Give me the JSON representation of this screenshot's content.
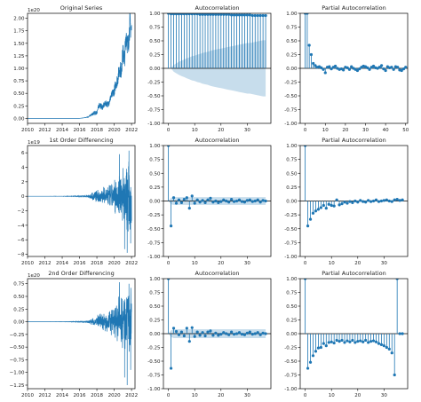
{
  "colors": {
    "line": "#1f77b4",
    "marker": "#1f77b4",
    "band": "#1f77b4",
    "axis": "#000000",
    "zero": "#000000"
  },
  "chart_data": [
    {
      "id": "orig_series",
      "type": "line",
      "title": "Original Series",
      "xlabel": "",
      "ylabel": "",
      "offset_label": "1e20",
      "xlim": [
        2010,
        2022.4
      ],
      "ylim": [
        -0.1,
        2.1
      ],
      "xticks": [
        2010,
        2012,
        2014,
        2016,
        2018,
        2020,
        2022
      ],
      "xtick_labels": [
        "2010",
        "2012",
        "2014",
        "2016",
        "2018",
        "2020",
        "2022"
      ],
      "yticks": [
        0.0,
        0.25,
        0.5,
        0.75,
        1.0,
        1.25,
        1.5,
        1.75,
        2.0
      ],
      "ytick_labels": [
        "0.00",
        "0.25",
        "0.50",
        "0.75",
        "1.00",
        "1.25",
        "1.50",
        "1.75",
        "2.00"
      ],
      "x": [
        2010,
        2016,
        2016.5,
        2017,
        2017.3,
        2017.6,
        2018,
        2018.3,
        2018.6,
        2019,
        2019.3,
        2019.6,
        2020,
        2020.2,
        2020.4,
        2020.6,
        2020.8,
        2021,
        2021.2,
        2021.4,
        2021.6,
        2021.8,
        2022
      ],
      "y": [
        0.0,
        0.0,
        0.01,
        0.03,
        0.06,
        0.1,
        0.12,
        0.28,
        0.22,
        0.3,
        0.28,
        0.42,
        0.55,
        0.7,
        0.78,
        1.0,
        0.95,
        1.3,
        1.2,
        1.7,
        1.4,
        1.9,
        1.75
      ],
      "noise": [
        0,
        0,
        0,
        0.01,
        0.02,
        0.04,
        0.05,
        0.06,
        0.06,
        0.06,
        0.07,
        0.08,
        0.1,
        0.12,
        0.14,
        0.16,
        0.18,
        0.2,
        0.22,
        0.25,
        0.25,
        0.25,
        0.25
      ]
    },
    {
      "id": "acf_orig",
      "type": "stem",
      "title": "Autocorrelation",
      "xlim": [
        -1.9,
        39
      ],
      "ylim": [
        -1.0,
        1.0
      ],
      "xticks": [
        0,
        10,
        20,
        30
      ],
      "xtick_labels": [
        "0",
        "10",
        "20",
        "30"
      ],
      "yticks": [
        -1.0,
        -0.75,
        -0.5,
        -0.25,
        0.0,
        0.25,
        0.5,
        0.75,
        1.0
      ],
      "ytick_labels": [
        "-1.00",
        "-0.75",
        "-0.50",
        "-0.25",
        "0.00",
        "0.25",
        "0.50",
        "0.75",
        "1.00"
      ],
      "values": [
        1.0,
        0.99,
        0.99,
        0.99,
        0.99,
        0.99,
        0.99,
        0.99,
        0.99,
        0.99,
        0.99,
        0.99,
        0.98,
        0.98,
        0.98,
        0.98,
        0.98,
        0.98,
        0.98,
        0.98,
        0.98,
        0.98,
        0.98,
        0.98,
        0.97,
        0.97,
        0.97,
        0.97,
        0.97,
        0.97,
        0.97,
        0.97,
        0.96,
        0.96,
        0.96,
        0.96,
        0.96,
        0.96
      ],
      "conf_band": [
        0.0,
        0.0,
        0.06,
        0.09,
        0.12,
        0.14,
        0.16,
        0.18,
        0.2,
        0.22,
        0.23,
        0.25,
        0.26,
        0.28,
        0.29,
        0.3,
        0.32,
        0.33,
        0.34,
        0.35,
        0.36,
        0.37,
        0.38,
        0.39,
        0.4,
        0.41,
        0.42,
        0.43,
        0.44,
        0.45,
        0.46,
        0.46,
        0.47,
        0.48,
        0.49,
        0.5,
        0.51,
        0.51
      ]
    },
    {
      "id": "pacf_orig",
      "type": "stem",
      "title": "Partial Autocorrelation",
      "xlim": [
        -2.5,
        51
      ],
      "ylim": [
        -1.0,
        1.0
      ],
      "xticks": [
        0,
        10,
        20,
        30,
        40,
        50
      ],
      "xtick_labels": [
        "0",
        "10",
        "20",
        "30",
        "40",
        "50"
      ],
      "yticks": [
        -1.0,
        -0.75,
        -0.5,
        -0.25,
        0.0,
        0.25,
        0.5,
        0.75,
        1.0
      ],
      "ytick_labels": [
        "-1.00",
        "-0.75",
        "-0.50",
        "-0.25",
        "0.00",
        "0.25",
        "0.50",
        "0.75",
        "1.00"
      ],
      "values": [
        1.0,
        1.0,
        0.42,
        0.25,
        0.09,
        0.05,
        0.02,
        0.03,
        0.01,
        -0.02,
        -0.08,
        0.02,
        0.03,
        -0.01,
        0.02,
        0.04,
        0.0,
        -0.02,
        -0.01,
        -0.03,
        0.02,
        0.01,
        -0.02,
        0.03,
        0.0,
        -0.02,
        -0.04,
        -0.01,
        0.02,
        0.04,
        0.03,
        0.01,
        -0.02,
        0.02,
        0.04,
        0.01,
        0.0,
        0.02,
        0.05,
        -0.01,
        -0.04,
        0.03,
        0.01,
        0.02,
        -0.02,
        0.03,
        0.02,
        -0.03,
        -0.04,
        -0.01,
        0.02
      ],
      "conf_band": []
    },
    {
      "id": "diff1_series",
      "type": "line",
      "title": "1st Order Differencing",
      "offset_label": "1e19",
      "xlim": [
        2010,
        2022.4
      ],
      "ylim": [
        -8.3,
        7.0
      ],
      "xticks": [
        2010,
        2012,
        2014,
        2016,
        2018,
        2020,
        2022
      ],
      "xtick_labels": [
        "2010",
        "2012",
        "2014",
        "2016",
        "2018",
        "2020",
        "2022"
      ],
      "yticks": [
        -8,
        -6,
        -4,
        -2,
        0,
        2,
        4,
        6
      ],
      "ytick_labels": [
        "−8",
        "−6",
        "−4",
        "−2",
        "0",
        "2",
        "4",
        "6"
      ],
      "x": [
        2010,
        2014,
        2015,
        2016,
        2017,
        2017.5,
        2018,
        2018.5,
        2019,
        2019.5,
        2020,
        2020.5,
        2021,
        2021.5,
        2022
      ],
      "amp": [
        0,
        0.01,
        0.03,
        0.08,
        0.2,
        0.6,
        1.0,
        1.3,
        1.5,
        2.0,
        2.5,
        3.5,
        4.5,
        5.5,
        5.0
      ],
      "spikes": [
        [
          2020.6,
          5.8
        ],
        [
          2021.2,
          -7.3
        ],
        [
          2021.5,
          -7.8
        ],
        [
          2021.7,
          6.3
        ],
        [
          2021.9,
          -6.5
        ]
      ]
    },
    {
      "id": "acf_diff1",
      "type": "stem",
      "title": "Autocorrelation",
      "xlim": [
        -1.9,
        39
      ],
      "ylim": [
        -1.0,
        1.0
      ],
      "xticks": [
        0,
        10,
        20,
        30
      ],
      "xtick_labels": [
        "0",
        "10",
        "20",
        "30"
      ],
      "yticks": [
        -1.0,
        -0.75,
        -0.5,
        -0.25,
        0.0,
        0.25,
        0.5,
        0.75,
        1.0
      ],
      "ytick_labels": [
        "-1.00",
        "-0.75",
        "-0.50",
        "-0.25",
        "0.00",
        "0.25",
        "0.50",
        "0.75",
        "1.00"
      ],
      "values": [
        1.0,
        -0.45,
        0.06,
        -0.04,
        0.02,
        -0.03,
        0.03,
        0.06,
        -0.13,
        0.09,
        -0.04,
        0.02,
        -0.02,
        0.01,
        -0.03,
        0.02,
        0.05,
        -0.02,
        0.0,
        -0.03,
        -0.01,
        0.02,
        0.0,
        -0.02,
        0.03,
        -0.01,
        0.0,
        0.02,
        -0.01,
        -0.02,
        0.01,
        0.02,
        -0.01,
        0.0,
        0.02,
        -0.02,
        0.01,
        0.0
      ],
      "conf_band": [
        0.0,
        0.06,
        0.07,
        0.07,
        0.07,
        0.07,
        0.07,
        0.07,
        0.07,
        0.07,
        0.07,
        0.07,
        0.07,
        0.07,
        0.07,
        0.07,
        0.07,
        0.07,
        0.07,
        0.07,
        0.07,
        0.07,
        0.07,
        0.07,
        0.07,
        0.07,
        0.07,
        0.07,
        0.07,
        0.07,
        0.07,
        0.07,
        0.07,
        0.07,
        0.07,
        0.07,
        0.07,
        0.07
      ]
    },
    {
      "id": "pacf_diff1",
      "type": "stem",
      "title": "Partial Autocorrelation",
      "xlim": [
        -1.9,
        39
      ],
      "ylim": [
        -1.0,
        1.0
      ],
      "xticks": [
        0,
        10,
        20,
        30
      ],
      "xtick_labels": [
        "0",
        "10",
        "20",
        "30"
      ],
      "yticks": [
        -1.0,
        -0.75,
        -0.5,
        -0.25,
        0.0,
        0.25,
        0.5,
        0.75,
        1.0
      ],
      "ytick_labels": [
        "-1.00",
        "-0.75",
        "-0.50",
        "-0.25",
        "0.00",
        "0.25",
        "0.50",
        "0.75",
        "1.00"
      ],
      "values": [
        1.0,
        -0.45,
        -0.33,
        -0.22,
        -0.18,
        -0.15,
        -0.12,
        -0.08,
        -0.13,
        -0.06,
        -0.08,
        -0.09,
        0.02,
        -0.07,
        -0.05,
        -0.02,
        -0.04,
        -0.01,
        -0.03,
        0.0,
        -0.02,
        0.01,
        -0.01,
        -0.02,
        0.01,
        -0.01,
        0.0,
        0.02,
        -0.01,
        0.0,
        0.01,
        0.02,
        0.0,
        -0.01,
        0.02,
        0.03,
        0.01,
        0.02
      ],
      "conf_band": []
    },
    {
      "id": "diff2_series",
      "type": "line",
      "title": "2nd Order Differencing",
      "offset_label": "1e20",
      "xlim": [
        2010,
        2022.4
      ],
      "ylim": [
        -1.32,
        0.85
      ],
      "xticks": [
        2010,
        2012,
        2014,
        2016,
        2018,
        2020,
        2022
      ],
      "xtick_labels": [
        "2010",
        "2012",
        "2014",
        "2016",
        "2018",
        "2020",
        "2022"
      ],
      "yticks": [
        -1.25,
        -1.0,
        -0.75,
        -0.5,
        -0.25,
        0.0,
        0.25,
        0.5,
        0.75
      ],
      "ytick_labels": [
        "−1.25",
        "−1.00",
        "−0.75",
        "−0.50",
        "−0.25",
        "0.00",
        "0.25",
        "0.50",
        "0.75"
      ],
      "x": [
        2010,
        2014,
        2015,
        2016,
        2017,
        2017.5,
        2018,
        2018.5,
        2019,
        2019.5,
        2020,
        2020.5,
        2021,
        2021.5,
        2022
      ],
      "amp": [
        0,
        0.001,
        0.004,
        0.01,
        0.03,
        0.08,
        0.13,
        0.18,
        0.2,
        0.28,
        0.35,
        0.5,
        0.62,
        0.72,
        0.68
      ],
      "spikes": [
        [
          2020.6,
          0.78
        ],
        [
          2021.2,
          -1.1
        ],
        [
          2021.5,
          -1.25
        ],
        [
          2021.7,
          0.75
        ],
        [
          2021.9,
          -0.95
        ]
      ]
    },
    {
      "id": "acf_diff2",
      "type": "stem",
      "title": "Autocorrelation",
      "xlim": [
        -1.9,
        39
      ],
      "ylim": [
        -1.0,
        1.0
      ],
      "xticks": [
        0,
        10,
        20,
        30
      ],
      "xtick_labels": [
        "0",
        "10",
        "20",
        "30"
      ],
      "yticks": [
        -1.0,
        -0.75,
        -0.5,
        -0.25,
        0.0,
        0.25,
        0.5,
        0.75,
        1.0
      ],
      "ytick_labels": [
        "-1.00",
        "-0.75",
        "-0.50",
        "-0.25",
        "0.00",
        "0.25",
        "0.50",
        "0.75",
        "1.00"
      ],
      "values": [
        1.0,
        -0.63,
        0.1,
        0.04,
        -0.02,
        0.03,
        -0.04,
        0.1,
        -0.14,
        0.11,
        -0.05,
        0.03,
        -0.03,
        0.02,
        -0.04,
        0.03,
        0.05,
        -0.03,
        0.01,
        -0.03,
        -0.01,
        0.02,
        0.0,
        -0.02,
        0.03,
        -0.01,
        0.0,
        0.02,
        -0.01,
        -0.02,
        0.01,
        0.03,
        -0.01,
        0.0,
        0.02,
        -0.02,
        0.01,
        0.0
      ],
      "conf_band": [
        0.0,
        0.06,
        0.08,
        0.08,
        0.08,
        0.08,
        0.08,
        0.08,
        0.08,
        0.08,
        0.08,
        0.08,
        0.08,
        0.08,
        0.08,
        0.08,
        0.08,
        0.08,
        0.08,
        0.08,
        0.08,
        0.08,
        0.08,
        0.08,
        0.08,
        0.08,
        0.08,
        0.08,
        0.08,
        0.08,
        0.08,
        0.08,
        0.08,
        0.08,
        0.08,
        0.08,
        0.08,
        0.08
      ]
    },
    {
      "id": "pacf_diff2",
      "type": "stem",
      "title": "Partial Autocorrelation",
      "xlim": [
        -1.9,
        39
      ],
      "ylim": [
        -1.0,
        1.0
      ],
      "xticks": [
        0,
        10,
        20,
        30
      ],
      "xtick_labels": [
        "0",
        "10",
        "20",
        "30"
      ],
      "yticks": [
        -1.0,
        -0.75,
        -0.5,
        -0.25,
        0.0,
        0.25,
        0.5,
        0.75,
        1.0
      ],
      "ytick_labels": [
        "-1.00",
        "-0.75",
        "-0.50",
        "-0.25",
        "0.00",
        "0.25",
        "0.50",
        "0.75",
        "1.00"
      ],
      "values": [
        1.0,
        -0.63,
        -0.52,
        -0.4,
        -0.32,
        -0.26,
        -0.25,
        -0.18,
        -0.22,
        -0.16,
        -0.15,
        -0.17,
        -0.12,
        -0.14,
        -0.12,
        -0.16,
        -0.13,
        -0.15,
        -0.12,
        -0.16,
        -0.14,
        -0.13,
        -0.15,
        -0.12,
        -0.16,
        -0.14,
        -0.13,
        -0.15,
        -0.18,
        -0.2,
        -0.22,
        -0.25,
        -0.28,
        -0.35,
        -0.75,
        1.0,
        0.0,
        0.0
      ],
      "conf_band": []
    }
  ]
}
